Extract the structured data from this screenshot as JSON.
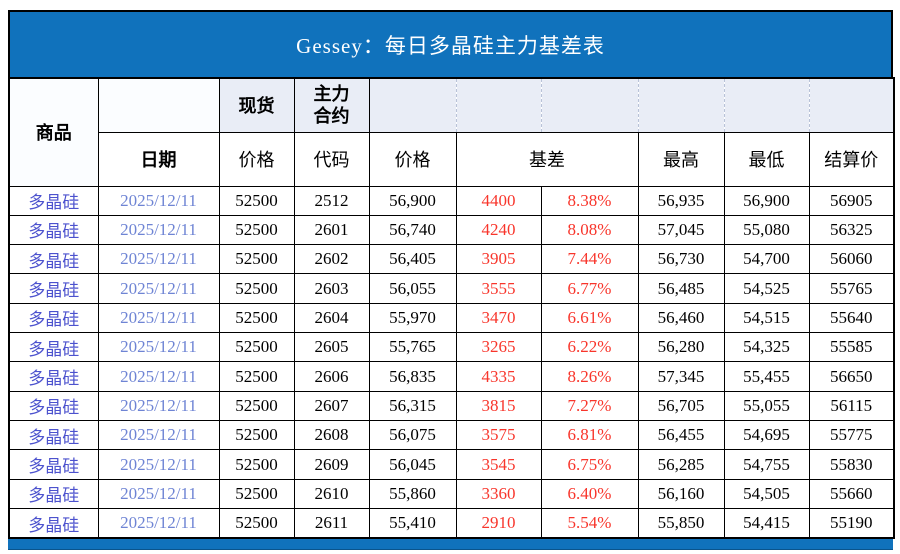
{
  "title": "Gessey：每日多晶硅主力基差表",
  "colors": {
    "title_bar": "#1072BC",
    "header_fill": "#E9EDF6",
    "white_fill": "#FBFDFF",
    "red_text": "#F8352B",
    "commodity_text": "#4C52CE",
    "date_text": "#6E84D4",
    "border": "#000000",
    "dashed_divider": "#B9C3D8"
  },
  "header": {
    "commodity": "商品",
    "date": "日期",
    "spot": "现货",
    "spot_price": "价格",
    "main_contract": [
      "主力",
      "合约"
    ],
    "contract_code": "代码",
    "futures_price": "价格",
    "basis": "基差",
    "high": "最高",
    "low": "最低",
    "settlement": "结算价"
  },
  "chart_data": {
    "type": "table",
    "title": "Gessey：每日多晶硅主力基差表",
    "columns": [
      "商品",
      "日期",
      "现货价格",
      "主力合约代码",
      "主力合约价格",
      "基差",
      "基差%",
      "最高",
      "最低",
      "结算价"
    ],
    "rows": [
      [
        "多晶硅",
        "2025/12/11",
        "52500",
        "2512",
        "56,900",
        "4400",
        "8.38%",
        "56,935",
        "56,900",
        "56905"
      ],
      [
        "多晶硅",
        "2025/12/11",
        "52500",
        "2601",
        "56,740",
        "4240",
        "8.08%",
        "57,045",
        "55,080",
        "56325"
      ],
      [
        "多晶硅",
        "2025/12/11",
        "52500",
        "2602",
        "56,405",
        "3905",
        "7.44%",
        "56,730",
        "54,700",
        "56060"
      ],
      [
        "多晶硅",
        "2025/12/11",
        "52500",
        "2603",
        "56,055",
        "3555",
        "6.77%",
        "56,485",
        "54,525",
        "55765"
      ],
      [
        "多晶硅",
        "2025/12/11",
        "52500",
        "2604",
        "55,970",
        "3470",
        "6.61%",
        "56,460",
        "54,515",
        "55640"
      ],
      [
        "多晶硅",
        "2025/12/11",
        "52500",
        "2605",
        "55,765",
        "3265",
        "6.22%",
        "56,280",
        "54,325",
        "55585"
      ],
      [
        "多晶硅",
        "2025/12/11",
        "52500",
        "2606",
        "56,835",
        "4335",
        "8.26%",
        "57,345",
        "55,455",
        "56650"
      ],
      [
        "多晶硅",
        "2025/12/11",
        "52500",
        "2607",
        "56,315",
        "3815",
        "7.27%",
        "56,705",
        "55,055",
        "56115"
      ],
      [
        "多晶硅",
        "2025/12/11",
        "52500",
        "2608",
        "56,075",
        "3575",
        "6.81%",
        "56,455",
        "54,695",
        "55775"
      ],
      [
        "多晶硅",
        "2025/12/11",
        "52500",
        "2609",
        "56,045",
        "3545",
        "6.75%",
        "56,285",
        "54,755",
        "55830"
      ],
      [
        "多晶硅",
        "2025/12/11",
        "52500",
        "2610",
        "55,860",
        "3360",
        "6.40%",
        "56,160",
        "54,505",
        "55660"
      ],
      [
        "多晶硅",
        "2025/12/11",
        "52500",
        "2611",
        "55,410",
        "2910",
        "5.54%",
        "55,850",
        "54,415",
        "55190"
      ]
    ]
  }
}
